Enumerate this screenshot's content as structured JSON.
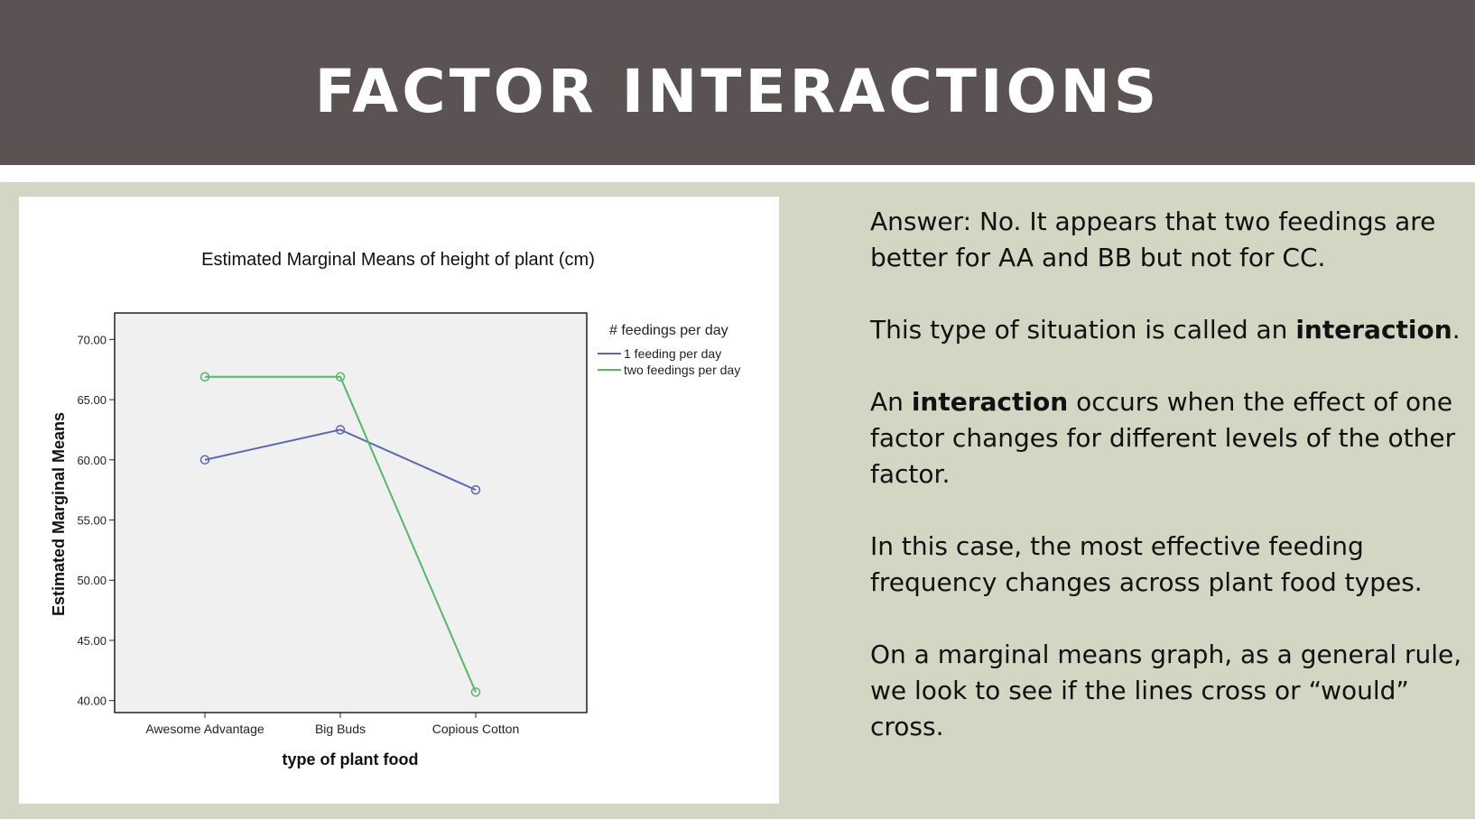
{
  "slide": {
    "title": "FACTOR INTERACTIONS"
  },
  "colors": {
    "header_bg": "#5b5254",
    "slide_bg": "#d3d6c2",
    "plot_bg": "#f0f0f0",
    "series_1": "#5a67b5",
    "series_2": "#55b866"
  },
  "text_panel": {
    "p1": "Answer: No. It appears that two feedings are better for AA and BB but not for CC.",
    "p2_pre": "This type of situation is called an ",
    "p2_bold": "interaction",
    "p2_post": ".",
    "p3_pre": "An ",
    "p3_bold": "interaction",
    "p3_post": " occurs when the effect of one factor changes for different levels of the other factor.",
    "p4": "In this case, the most effective feeding frequency changes across plant food types.",
    "p5": "On a  marginal means graph, as a general rule, we look to see if the lines cross or “would” cross."
  },
  "chart_data": {
    "type": "line",
    "title": "Estimated Marginal Means of height of plant (cm)",
    "xlabel": "type of plant food",
    "ylabel": "Estimated Marginal Means",
    "categories": [
      "Awesome Advantage",
      "Big Buds",
      "Copious Cotton"
    ],
    "yticks": [
      "40.00",
      "45.00",
      "50.00",
      "55.00",
      "60.00",
      "65.00",
      "70.00"
    ],
    "ylim": [
      39,
      72.2
    ],
    "legend_title": "# feedings per day",
    "legend_position": "right",
    "grid": false,
    "series": [
      {
        "name": "1 feeding per day",
        "values": [
          60.0,
          62.5,
          57.5
        ],
        "color": "#5a67b5"
      },
      {
        "name": "two feedings per day",
        "values": [
          66.9,
          66.9,
          40.7
        ],
        "color": "#55b866"
      }
    ]
  }
}
